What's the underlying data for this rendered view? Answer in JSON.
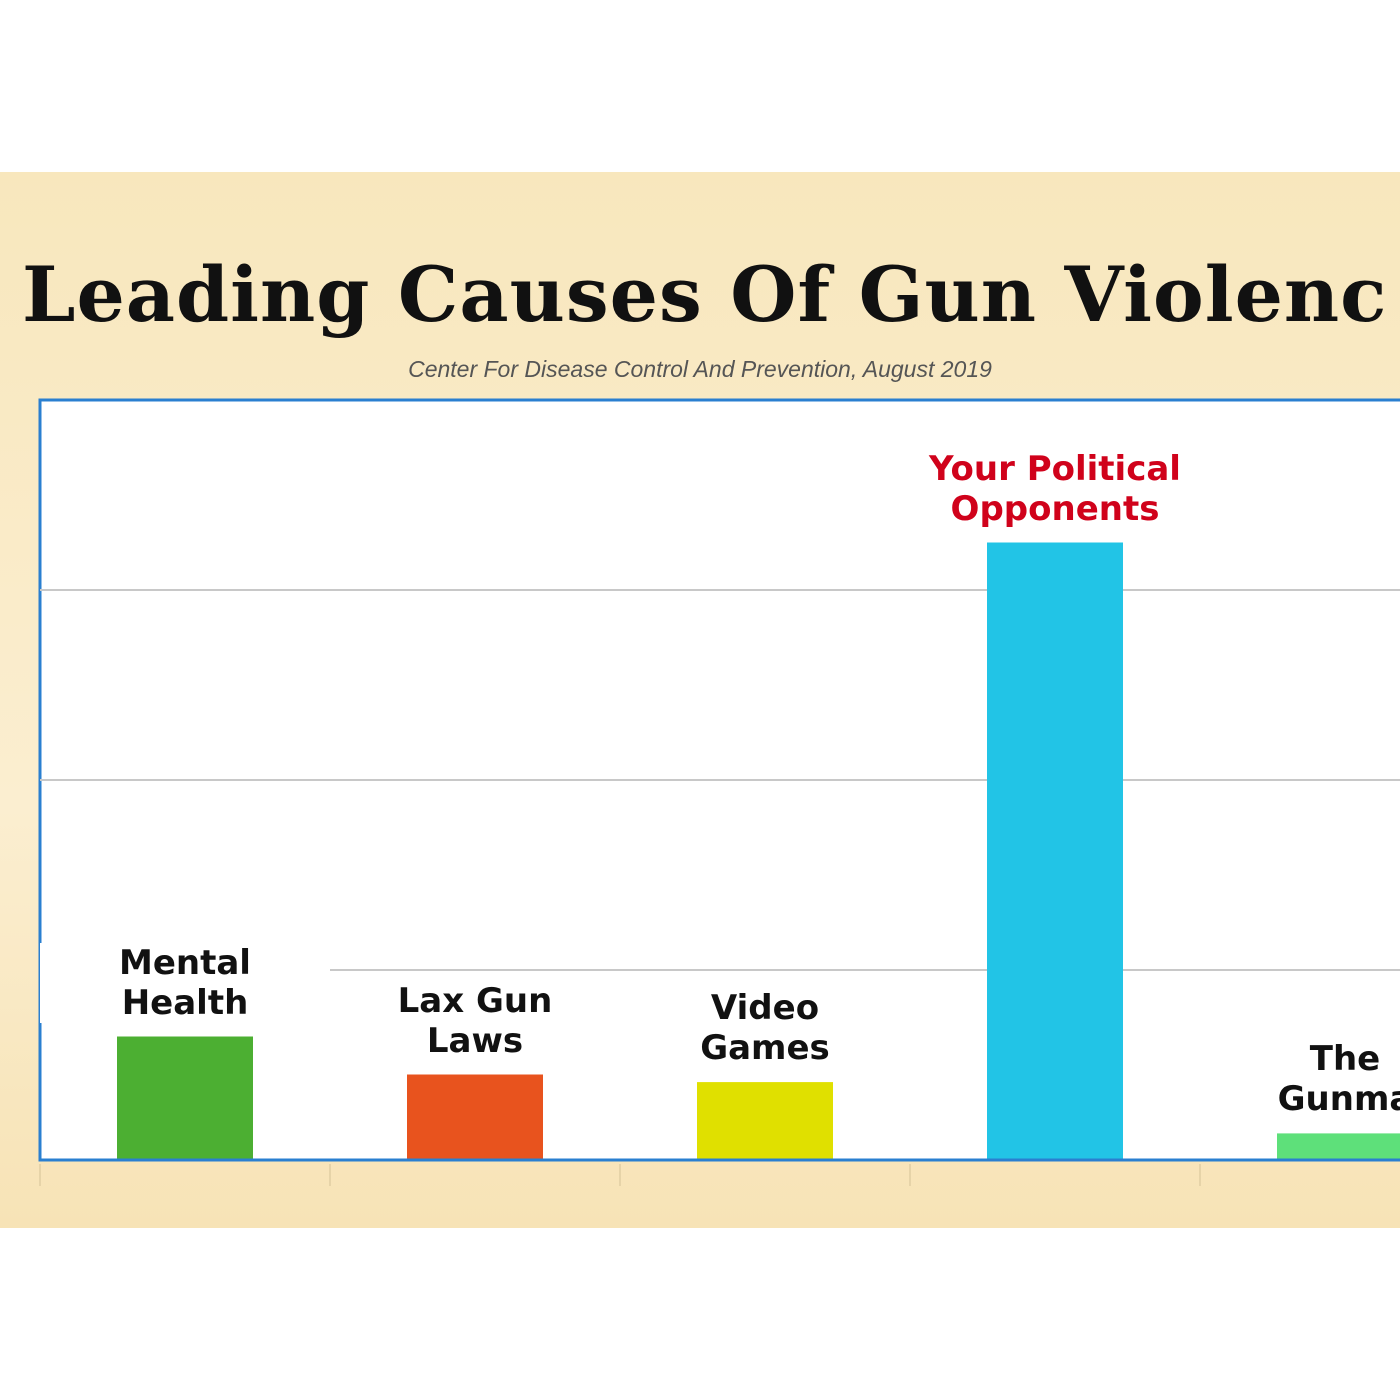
{
  "chart_data": {
    "type": "bar",
    "title": "Leading Causes Of Gun Violenc",
    "subtitle": "Center For Disease Control And Prevention, August 2019",
    "categories": [
      "Mental\nHealth",
      "Lax Gun\nLaws",
      "Video\nGames",
      "Your Political\nOpponents",
      "The\nGunma"
    ],
    "values": [
      0.65,
      0.45,
      0.41,
      3.25,
      0.14
    ],
    "colors": [
      "#4caf32",
      "#e8531e",
      "#e0e000",
      "#22c4e6",
      "#5ee07a"
    ],
    "label_colors": [
      "#111111",
      "#111111",
      "#111111",
      "#d0021b",
      "#111111"
    ],
    "ylim": [
      0,
      4
    ],
    "yticks": [
      0,
      1,
      2,
      3,
      4
    ],
    "grid": true
  }
}
